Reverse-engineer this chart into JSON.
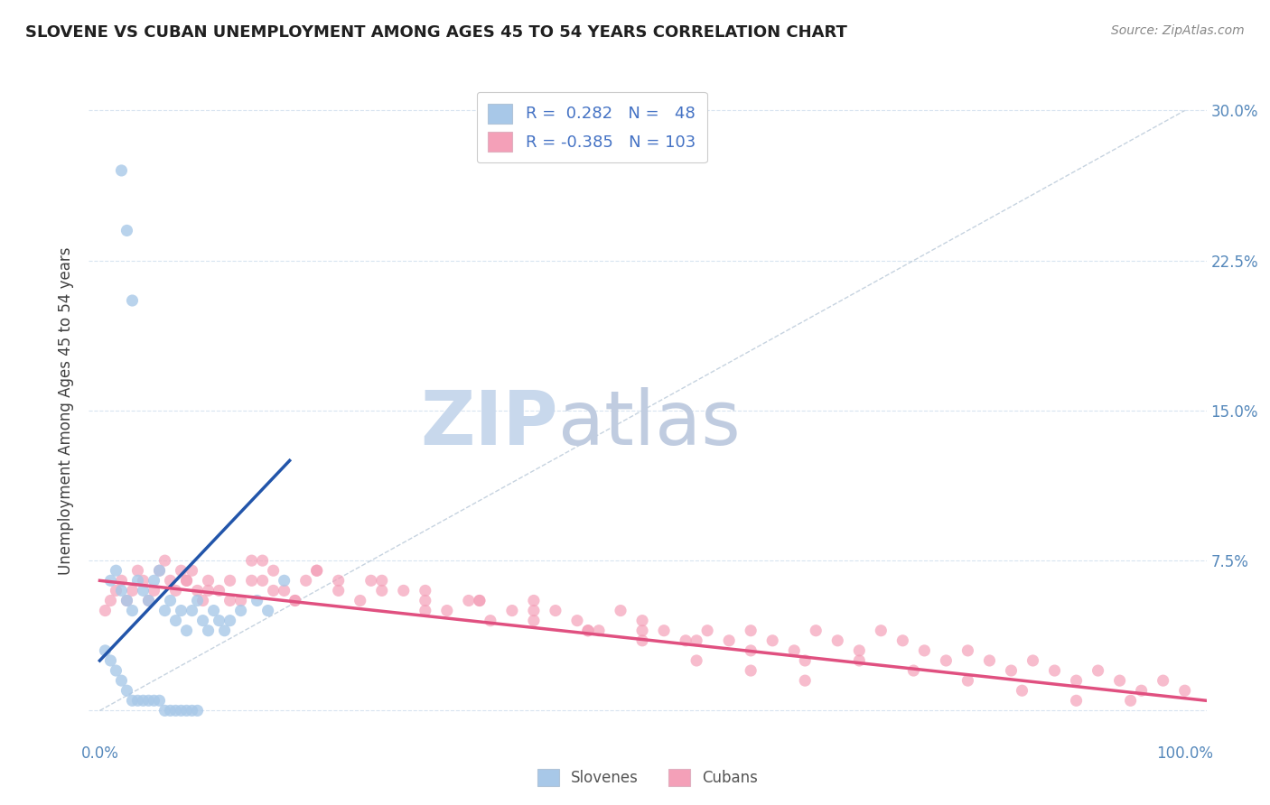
{
  "title": "SLOVENE VS CUBAN UNEMPLOYMENT AMONG AGES 45 TO 54 YEARS CORRELATION CHART",
  "source_text": "Source: ZipAtlas.com",
  "ylabel": "Unemployment Among Ages 45 to 54 years",
  "xlim": [
    -0.01,
    1.02
  ],
  "ylim": [
    -0.015,
    0.315
  ],
  "yticks": [
    0.0,
    0.075,
    0.15,
    0.225,
    0.3
  ],
  "yticklabels": [
    "",
    "7.5%",
    "15.0%",
    "22.5%",
    "30.0%"
  ],
  "slovene_color": "#a8c8e8",
  "cuban_color": "#f4a0b8",
  "slovene_line_color": "#2255aa",
  "cuban_line_color": "#e05080",
  "ref_line_color": "#b8c8d8",
  "grid_color": "#d8e4f0",
  "background_color": "#ffffff",
  "watermark_zip_color": "#c8d8ec",
  "watermark_atlas_color": "#c0cce0",
  "legend_slovene_R": "0.282",
  "legend_slovene_N": "48",
  "legend_cuban_R": "-0.385",
  "legend_cuban_N": "103",
  "slovene_x": [
    0.02,
    0.025,
    0.03,
    0.01,
    0.015,
    0.02,
    0.025,
    0.03,
    0.035,
    0.04,
    0.045,
    0.05,
    0.055,
    0.06,
    0.065,
    0.07,
    0.075,
    0.08,
    0.085,
    0.09,
    0.095,
    0.1,
    0.105,
    0.11,
    0.115,
    0.12,
    0.005,
    0.01,
    0.015,
    0.02,
    0.025,
    0.03,
    0.035,
    0.04,
    0.045,
    0.05,
    0.055,
    0.06,
    0.065,
    0.07,
    0.075,
    0.08,
    0.085,
    0.09,
    0.13,
    0.145,
    0.155,
    0.17
  ],
  "slovene_y": [
    0.27,
    0.24,
    0.205,
    0.065,
    0.07,
    0.06,
    0.055,
    0.05,
    0.065,
    0.06,
    0.055,
    0.065,
    0.07,
    0.05,
    0.055,
    0.045,
    0.05,
    0.04,
    0.05,
    0.055,
    0.045,
    0.04,
    0.05,
    0.045,
    0.04,
    0.045,
    0.03,
    0.025,
    0.02,
    0.015,
    0.01,
    0.005,
    0.005,
    0.005,
    0.005,
    0.005,
    0.005,
    0.0,
    0.0,
    0.0,
    0.0,
    0.0,
    0.0,
    0.0,
    0.05,
    0.055,
    0.05,
    0.065
  ],
  "cuban_x": [
    0.005,
    0.01,
    0.015,
    0.02,
    0.025,
    0.03,
    0.035,
    0.04,
    0.045,
    0.05,
    0.055,
    0.06,
    0.065,
    0.07,
    0.075,
    0.08,
    0.085,
    0.09,
    0.095,
    0.1,
    0.11,
    0.12,
    0.13,
    0.14,
    0.15,
    0.16,
    0.17,
    0.18,
    0.19,
    0.2,
    0.22,
    0.24,
    0.26,
    0.28,
    0.3,
    0.32,
    0.34,
    0.36,
    0.38,
    0.4,
    0.42,
    0.44,
    0.46,
    0.48,
    0.5,
    0.52,
    0.54,
    0.56,
    0.58,
    0.6,
    0.62,
    0.64,
    0.66,
    0.68,
    0.7,
    0.72,
    0.74,
    0.76,
    0.78,
    0.8,
    0.82,
    0.84,
    0.86,
    0.88,
    0.9,
    0.92,
    0.94,
    0.96,
    0.98,
    1.0,
    0.08,
    0.1,
    0.12,
    0.14,
    0.16,
    0.18,
    0.22,
    0.26,
    0.3,
    0.35,
    0.4,
    0.45,
    0.5,
    0.55,
    0.6,
    0.65,
    0.7,
    0.75,
    0.8,
    0.85,
    0.9,
    0.95,
    0.15,
    0.2,
    0.25,
    0.3,
    0.35,
    0.4,
    0.45,
    0.5,
    0.55,
    0.6,
    0.65
  ],
  "cuban_y": [
    0.05,
    0.055,
    0.06,
    0.065,
    0.055,
    0.06,
    0.07,
    0.065,
    0.055,
    0.06,
    0.07,
    0.075,
    0.065,
    0.06,
    0.07,
    0.065,
    0.07,
    0.06,
    0.055,
    0.065,
    0.06,
    0.065,
    0.055,
    0.075,
    0.065,
    0.07,
    0.06,
    0.055,
    0.065,
    0.07,
    0.06,
    0.055,
    0.065,
    0.06,
    0.055,
    0.05,
    0.055,
    0.045,
    0.05,
    0.055,
    0.05,
    0.045,
    0.04,
    0.05,
    0.045,
    0.04,
    0.035,
    0.04,
    0.035,
    0.04,
    0.035,
    0.03,
    0.04,
    0.035,
    0.03,
    0.04,
    0.035,
    0.03,
    0.025,
    0.03,
    0.025,
    0.02,
    0.025,
    0.02,
    0.015,
    0.02,
    0.015,
    0.01,
    0.015,
    0.01,
    0.065,
    0.06,
    0.055,
    0.065,
    0.06,
    0.055,
    0.065,
    0.06,
    0.05,
    0.055,
    0.045,
    0.04,
    0.04,
    0.035,
    0.03,
    0.025,
    0.025,
    0.02,
    0.015,
    0.01,
    0.005,
    0.005,
    0.075,
    0.07,
    0.065,
    0.06,
    0.055,
    0.05,
    0.04,
    0.035,
    0.025,
    0.02,
    0.015
  ],
  "slovene_trend_x": [
    0.0,
    0.175
  ],
  "slovene_trend_y": [
    0.025,
    0.125
  ],
  "cuban_trend_x": [
    0.0,
    1.02
  ],
  "cuban_trend_y": [
    0.065,
    0.005
  ],
  "ref_line_x": [
    0.0,
    1.0
  ],
  "ref_line_y": [
    0.0,
    0.3
  ]
}
